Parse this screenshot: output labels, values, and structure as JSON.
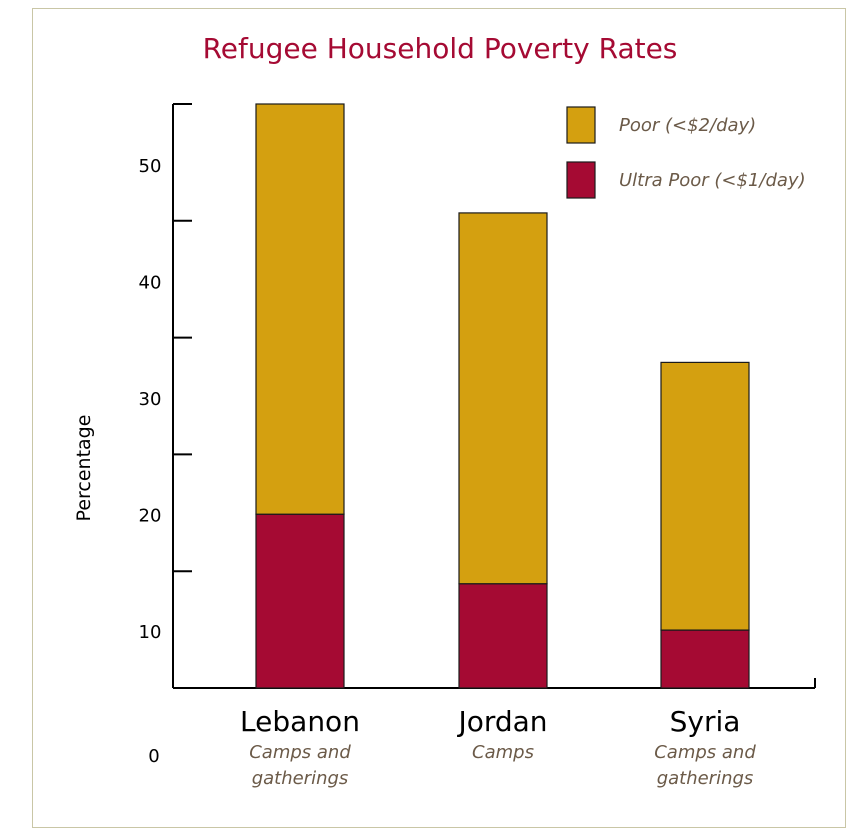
{
  "chart_data": {
    "type": "bar",
    "stacked": true,
    "title": "Refugee Household Poverty Rates",
    "ylabel": "Percentage",
    "xlabel": "",
    "ylim": [
      0,
      55
    ],
    "yticks": [
      10,
      20,
      30,
      40,
      50
    ],
    "zero_label": "0",
    "categories": [
      {
        "name": "Lebanon",
        "subtitle": [
          "Camps and",
          "gatherings"
        ]
      },
      {
        "name": "Jordan",
        "subtitle": [
          "Camps"
        ]
      },
      {
        "name": "Syria",
        "subtitle": [
          "Camps and",
          "gatherings"
        ]
      }
    ],
    "series": [
      {
        "name": "Ultra Poor (<$1/day)",
        "color": "#a50a33",
        "values": [
          15,
          9,
          5
        ]
      },
      {
        "name": "Poor (<$2/day)",
        "color": "#d4a010",
        "values": [
          35.4,
          32,
          23.1
        ]
      }
    ],
    "totals": [
      50.4,
      41,
      28.1
    ],
    "legend_position": "top-right",
    "grid": false,
    "colors": {
      "title": "#a50a33",
      "axis": "#000000",
      "frame": "#c9c6a6"
    }
  }
}
